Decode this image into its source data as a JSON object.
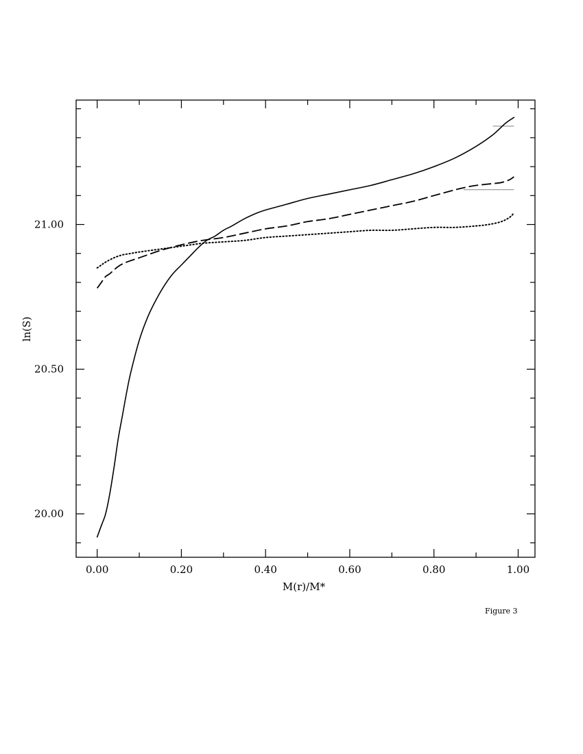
{
  "caption": "Figure 3",
  "chart_data": {
    "type": "line",
    "xlabel": "M(r)/M*",
    "ylabel": "ln(S)",
    "xlim": [
      -0.05,
      1.04
    ],
    "ylim": [
      19.85,
      21.43
    ],
    "x_ticks": [
      0.0,
      0.2,
      0.4,
      0.6,
      0.8,
      1.0
    ],
    "x_tick_labels": [
      "0.00",
      "0.20",
      "0.40",
      "0.60",
      "0.80",
      "1.00"
    ],
    "y_ticks": [
      20.0,
      20.5,
      21.0
    ],
    "y_tick_labels": [
      "20.00",
      "20.50",
      "21.00"
    ],
    "x_minor_step": 0.1,
    "y_minor_step": 0.1,
    "grid": false,
    "series": [
      {
        "style": "solid",
        "x": [
          0.0,
          0.01,
          0.02,
          0.03,
          0.04,
          0.05,
          0.06,
          0.07,
          0.08,
          0.1,
          0.12,
          0.14,
          0.16,
          0.18,
          0.2,
          0.22,
          0.24,
          0.26,
          0.28,
          0.3,
          0.32,
          0.35,
          0.38,
          0.4,
          0.45,
          0.5,
          0.55,
          0.6,
          0.65,
          0.7,
          0.75,
          0.8,
          0.85,
          0.9,
          0.94,
          0.97,
          0.99
        ],
        "y": [
          19.92,
          19.96,
          20.0,
          20.07,
          20.16,
          20.26,
          20.34,
          20.42,
          20.49,
          20.6,
          20.68,
          20.74,
          20.79,
          20.83,
          20.86,
          20.89,
          20.92,
          20.945,
          20.96,
          20.98,
          20.995,
          21.02,
          21.04,
          21.05,
          21.07,
          21.09,
          21.105,
          21.12,
          21.135,
          21.155,
          21.175,
          21.2,
          21.23,
          21.27,
          21.31,
          21.35,
          21.37
        ]
      },
      {
        "style": "dashed",
        "x": [
          0.0,
          0.01,
          0.02,
          0.03,
          0.05,
          0.07,
          0.1,
          0.15,
          0.2,
          0.25,
          0.3,
          0.35,
          0.4,
          0.45,
          0.5,
          0.55,
          0.6,
          0.65,
          0.7,
          0.75,
          0.8,
          0.85,
          0.88,
          0.9,
          0.93,
          0.96,
          0.98,
          0.99
        ],
        "y": [
          20.78,
          20.8,
          20.82,
          20.83,
          20.855,
          20.87,
          20.885,
          20.91,
          20.93,
          20.945,
          20.955,
          20.97,
          20.985,
          20.995,
          21.01,
          21.02,
          21.035,
          21.05,
          21.065,
          21.08,
          21.1,
          21.12,
          21.13,
          21.135,
          21.14,
          21.145,
          21.155,
          21.165
        ]
      },
      {
        "style": "dotted",
        "x": [
          0.0,
          0.01,
          0.02,
          0.04,
          0.06,
          0.08,
          0.1,
          0.15,
          0.2,
          0.25,
          0.3,
          0.35,
          0.4,
          0.45,
          0.5,
          0.55,
          0.6,
          0.65,
          0.7,
          0.75,
          0.8,
          0.85,
          0.9,
          0.93,
          0.96,
          0.98,
          0.99
        ],
        "y": [
          20.85,
          20.86,
          20.87,
          20.885,
          20.895,
          20.9,
          20.905,
          20.915,
          20.925,
          20.935,
          20.94,
          20.945,
          20.955,
          20.96,
          20.965,
          20.97,
          20.975,
          20.98,
          20.98,
          20.985,
          20.99,
          20.99,
          20.995,
          21.0,
          21.01,
          21.025,
          21.04
        ]
      }
    ],
    "annotations": [
      {
        "style": "thin",
        "x": [
          0.94,
          0.99
        ],
        "y": [
          21.34,
          21.34
        ]
      },
      {
        "style": "thin",
        "x": [
          0.87,
          0.99
        ],
        "y": [
          21.12,
          21.12
        ]
      }
    ]
  }
}
